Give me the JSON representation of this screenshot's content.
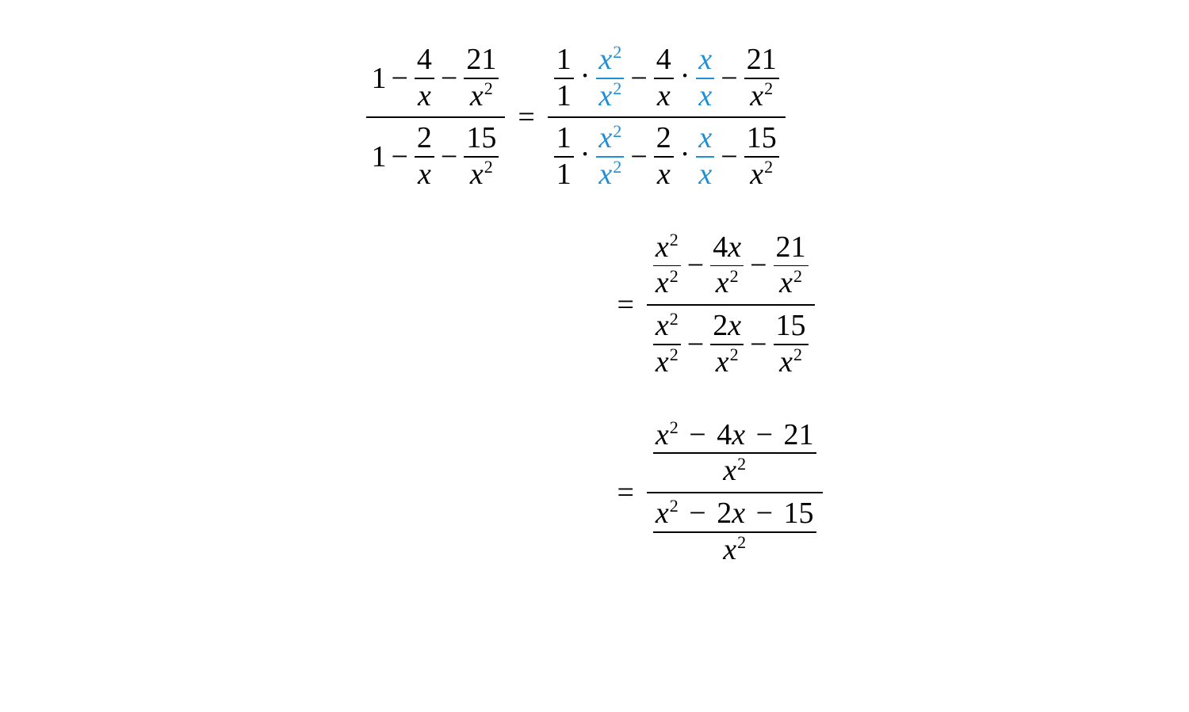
{
  "colors": {
    "text": "#000000",
    "highlight": "#1f8fd6",
    "background": "#ffffff"
  },
  "typography": {
    "font_family": "Times New Roman",
    "base_fontsize_pt": 28,
    "style": "italic-for-variables"
  },
  "equation": {
    "lhs": {
      "numerator": {
        "terms": [
          {
            "type": "const",
            "value": "1"
          },
          {
            "type": "op",
            "value": "−"
          },
          {
            "type": "frac",
            "num": "4",
            "den": "x"
          },
          {
            "type": "op",
            "value": "−"
          },
          {
            "type": "frac",
            "num": "21",
            "den": "x²"
          }
        ]
      },
      "denominator": {
        "terms": [
          {
            "type": "const",
            "value": "1"
          },
          {
            "type": "op",
            "value": "−"
          },
          {
            "type": "frac",
            "num": "2",
            "den": "x"
          },
          {
            "type": "op",
            "value": "−"
          },
          {
            "type": "frac",
            "num": "15",
            "den": "x²"
          }
        ]
      }
    },
    "step1": {
      "numerator": "1/1 · x²/x² − 4/x · x/x − 21/x²",
      "denominator": "1/1 · x²/x² − 2/x · x/x − 15/x²",
      "highlighted_multipliers": [
        "x²/x²",
        "x/x"
      ]
    },
    "step2": {
      "numerator": "x²/x² − 4x/x² − 21/x²",
      "denominator": "x²/x² − 2x/x² − 15/x²"
    },
    "step3": {
      "numerator_top": "x² − 4x − 21",
      "numerator_bottom": "x²",
      "denominator_top": "x² − 2x − 15",
      "denominator_bottom": "x²"
    }
  },
  "labels": {
    "one": "1",
    "four": "4",
    "twentyone": "21",
    "two": "2",
    "fifteen": "15",
    "x": "x",
    "xsq": "x",
    "sq": "2",
    "eq": "=",
    "minus": "−",
    "dot": "·",
    "fourx": "4",
    "twox": "2",
    "step3num": "x² − 4x − 21",
    "step3den": "x² − 2x − 15",
    "xsq_plain_a": "x",
    "xsq_plain_b": "2",
    "num_4x": "4x",
    "num_2x": "2x"
  }
}
